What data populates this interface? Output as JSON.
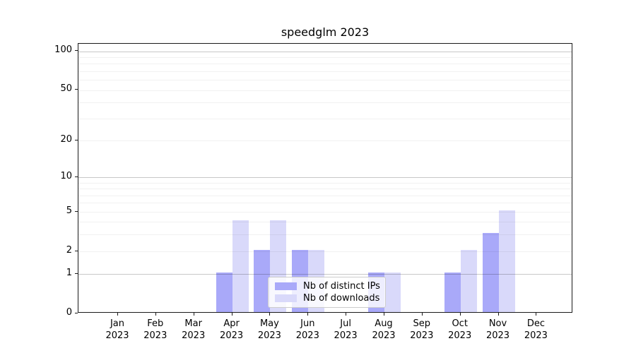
{
  "title": "speedglm 2023",
  "chart_data": {
    "type": "bar",
    "title": "speedglm 2023",
    "months": [
      "Jan",
      "Feb",
      "Mar",
      "Apr",
      "May",
      "Jun",
      "Jul",
      "Aug",
      "Sep",
      "Oct",
      "Nov",
      "Dec"
    ],
    "year": "2023",
    "categories": [
      "Jan 2023",
      "Feb 2023",
      "Mar 2023",
      "Apr 2023",
      "May 2023",
      "Jun 2023",
      "Jul 2023",
      "Aug 2023",
      "Sep 2023",
      "Oct 2023",
      "Nov 2023",
      "Dec 2023"
    ],
    "series": [
      {
        "name": "Nb of distinct IPs",
        "color": "#a9a9f9",
        "values": [
          0,
          0,
          0,
          1,
          2,
          2,
          0,
          1,
          0,
          1,
          3,
          0
        ]
      },
      {
        "name": "Nb of downloads",
        "color": "#d9d9fa",
        "values": [
          0,
          0,
          0,
          4,
          4,
          2,
          0,
          1,
          0,
          2,
          5,
          0
        ]
      }
    ],
    "yscale": "log1p",
    "ylim": [
      0,
      113
    ],
    "y_ticks": [
      0,
      1,
      2,
      5,
      10,
      20,
      50,
      100
    ],
    "y_gridlines_major": [
      1,
      10,
      100
    ],
    "y_gridlines_minor": [
      2,
      3,
      4,
      5,
      6,
      7,
      8,
      9,
      20,
      30,
      40,
      50,
      60,
      70,
      80,
      90
    ],
    "grid": true,
    "xlabel": "",
    "ylabel": "",
    "legend_position": "lower center"
  }
}
